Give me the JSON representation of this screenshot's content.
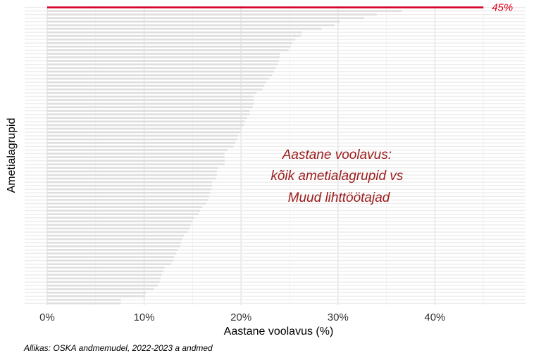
{
  "chart_data": {
    "type": "bar",
    "orientation": "horizontal",
    "xlabel": "Aastane voolavus (%)",
    "ylabel": "Ametialagrupid",
    "xlim": [
      -2.3,
      49.4
    ],
    "x_ticks": [
      0,
      10,
      20,
      30,
      40
    ],
    "x_tick_labels": [
      "0%",
      "10%",
      "20%",
      "30%",
      "40%"
    ],
    "grid": true,
    "highlight": {
      "value": 45,
      "label": "45%",
      "color": "#d6002a"
    },
    "other_color": "#dedede",
    "values": [
      45,
      36.6,
      34,
      32.7,
      30.2,
      29.6,
      28.3,
      26.3,
      26.2,
      25.6,
      25.3,
      25.1,
      24.9,
      24.0,
      24.0,
      23.9,
      23.8,
      23.6,
      23.4,
      23.2,
      22.9,
      22.6,
      22.4,
      22.2,
      21.6,
      21.3,
      21.3,
      21.3,
      21.2,
      20.9,
      20.9,
      20.6,
      20.4,
      20.3,
      20.0,
      19.9,
      19.7,
      19.6,
      19.4,
      19.2,
      18.6,
      18.3,
      18.3,
      18.3,
      18.3,
      17.6,
      17.5,
      17.5,
      17.4,
      17.0,
      17.0,
      16.9,
      16.8,
      16.7,
      16.6,
      16.4,
      16.0,
      15.8,
      15.6,
      15.2,
      15.0,
      14.8,
      14.7,
      14.5,
      14.1,
      13.9,
      13.8,
      13.7,
      13.5,
      13.3,
      13.1,
      13.0,
      12.8,
      12.1,
      12.0,
      11.8,
      11.7,
      11.6,
      11.4,
      11.0,
      10.2,
      10.1,
      7.6,
      7.6
    ]
  },
  "annotation": [
    "Aastane voolavus:",
    "kõik ametialagrupid vs",
    "Muud lihttöötajad"
  ],
  "annotation_color": "#9b1c1c",
  "caption": "Allikas: OSKA andmemudel, 2022-2023 a andmed"
}
